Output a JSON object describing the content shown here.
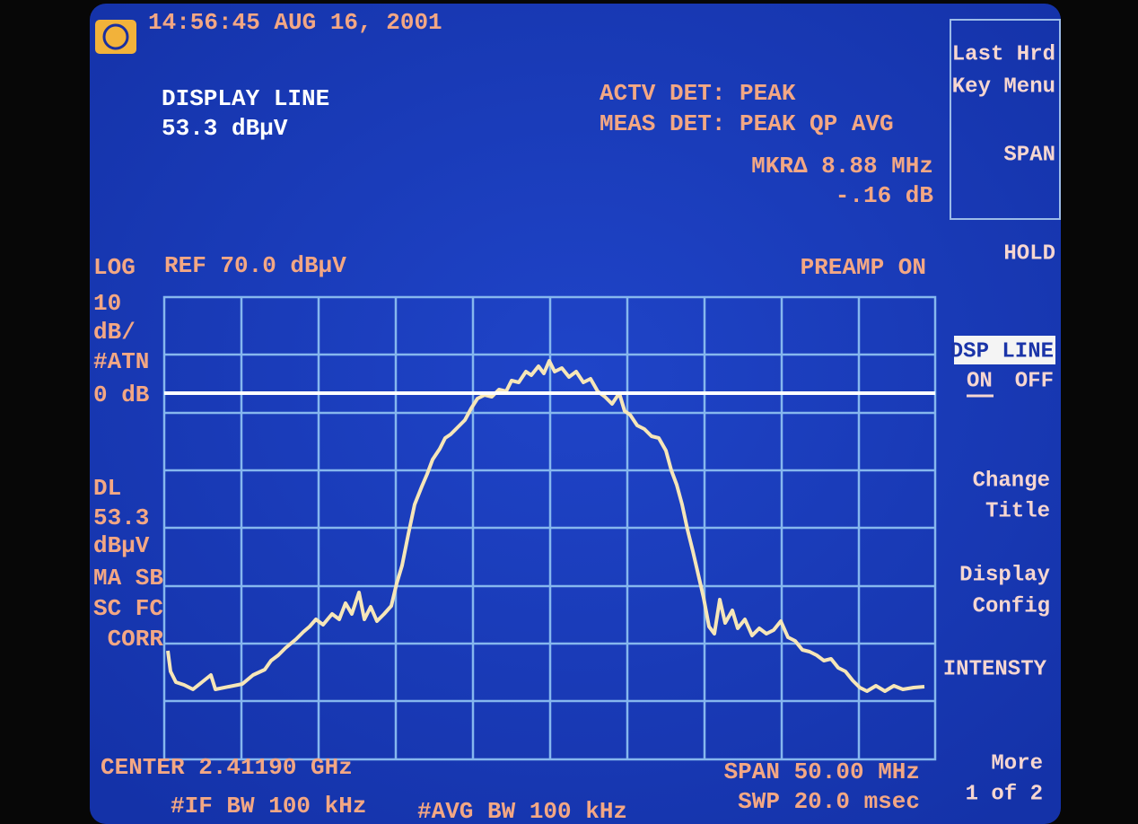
{
  "header": {
    "timestamp": "14:56:45 AUG 16, 2001"
  },
  "display_line": {
    "title": "DISPLAY LINE",
    "value": "53.3 dBµV"
  },
  "detector": {
    "actv": "ACTV DET: PEAK",
    "meas": "MEAS DET: PEAK QP AVG",
    "marker": "MKR∆ 8.88 MHz",
    "marker_delta": "-.16 dB"
  },
  "scale": {
    "log": "LOG",
    "div": "10",
    "div_unit": "dB/",
    "atn": "#ATN",
    "atn_value": "0 dB",
    "dl": "DL",
    "dl_value": "53.3",
    "dl_unit": "dBµV",
    "flags1": "MA SB",
    "flags2": "SC FC",
    "corr": "CORR"
  },
  "ref": "REF 70.0 dBµV",
  "preamp": "PREAMP ON",
  "footer": {
    "center": "CENTER 2.41190 GHz",
    "if_bw": "#IF BW 100 kHz",
    "avg_bw": "#AVG BW 100 kHz",
    "span": "SPAN 50.00 MHz",
    "swp": "SWP 20.0 msec"
  },
  "softkeys": {
    "last": [
      "Last Hrd",
      "Key Menu"
    ],
    "span": "SPAN",
    "hold": "HOLD",
    "dsp_line": "DSP LINE",
    "on": "ON",
    "off": "OFF",
    "change_title": [
      "Change",
      "Title"
    ],
    "display_config": [
      "Display",
      "Config"
    ],
    "intensity": "INTENSTY",
    "more": [
      "More",
      "1 of 2"
    ]
  }
}
